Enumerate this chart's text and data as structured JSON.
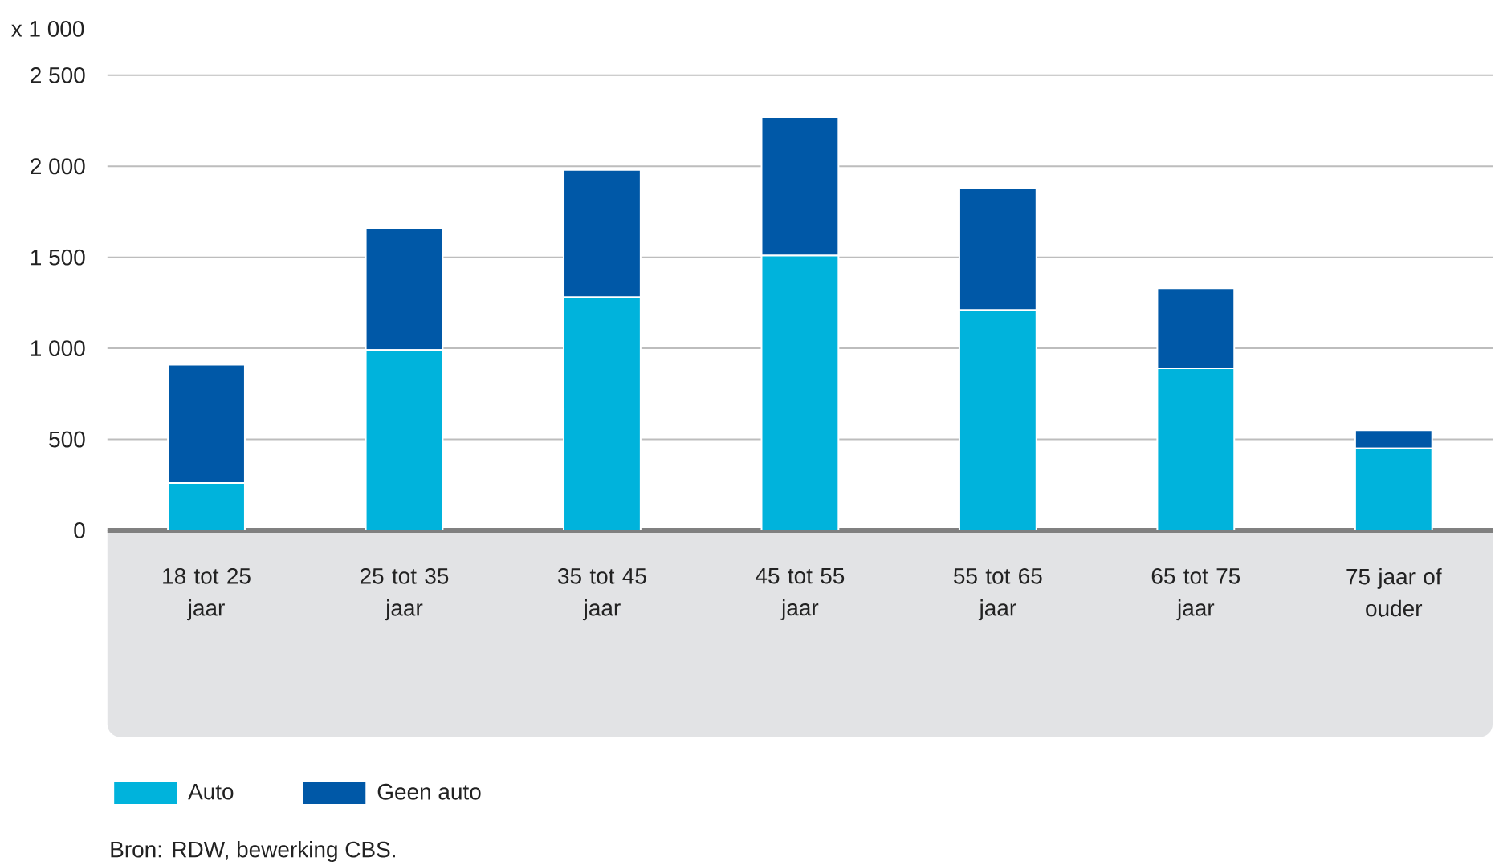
{
  "chart_data": {
    "type": "bar",
    "stacked": true,
    "ylabel": "x 1 000",
    "categories": [
      "18 tot 25 jaar",
      "25 tot 35 jaar",
      "35 tot 45 jaar",
      "45 tot 55 jaar",
      "55 tot 65 jaar",
      "65 tot 75 jaar",
      "75 jaar of ouder"
    ],
    "series": [
      {
        "name": "Auto",
        "color": "#00b3dc",
        "values": [
          260,
          990,
          1280,
          1510,
          1210,
          890,
          450
        ]
      },
      {
        "name": "Geen auto",
        "color": "#0058a7",
        "values": [
          650,
          670,
          700,
          760,
          670,
          440,
          100
        ]
      }
    ],
    "ylim": [
      0,
      2500
    ],
    "yticks": [
      0,
      500,
      {
        "value": 1000,
        "label": "1 000"
      },
      {
        "value": 1500,
        "label": "1 500"
      },
      {
        "value": 2000,
        "label": "2 000"
      },
      {
        "value": 2500,
        "label": "2 500"
      }
    ],
    "grid": "y",
    "legend": "bottom",
    "annotations": [
      "Bron: RDW, bewerking CBS."
    ]
  }
}
